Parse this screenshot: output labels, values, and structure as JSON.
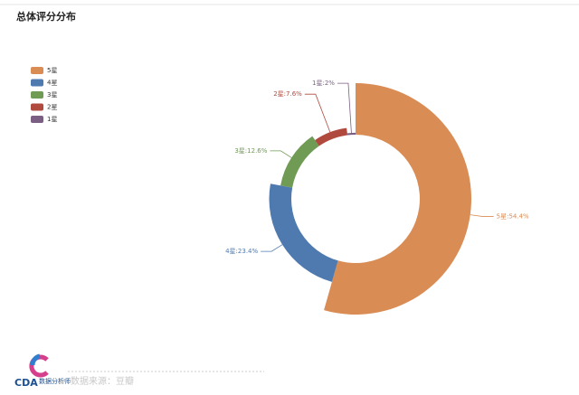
{
  "chart_data": {
    "type": "pie",
    "rose": true,
    "title": "总体评分分布",
    "categories": [
      "5星",
      "4星",
      "3星",
      "2星",
      "1星"
    ],
    "values": [
      54.4,
      23.4,
      12.6,
      7.6,
      2
    ],
    "value_labels": [
      "5星:54.4%",
      "4星:23.4%",
      "3星:12.6%",
      "2星:7.6%",
      "1星:2%"
    ],
    "colors": [
      "#d98c54",
      "#4f7ab0",
      "#6f9b55",
      "#b04a3f",
      "#7b5f83"
    ],
    "legend": "top-left"
  },
  "footer": {
    "logo": "CDA",
    "logo_subtitle": "数据分析师",
    "source": "数据来源：豆瓣"
  }
}
